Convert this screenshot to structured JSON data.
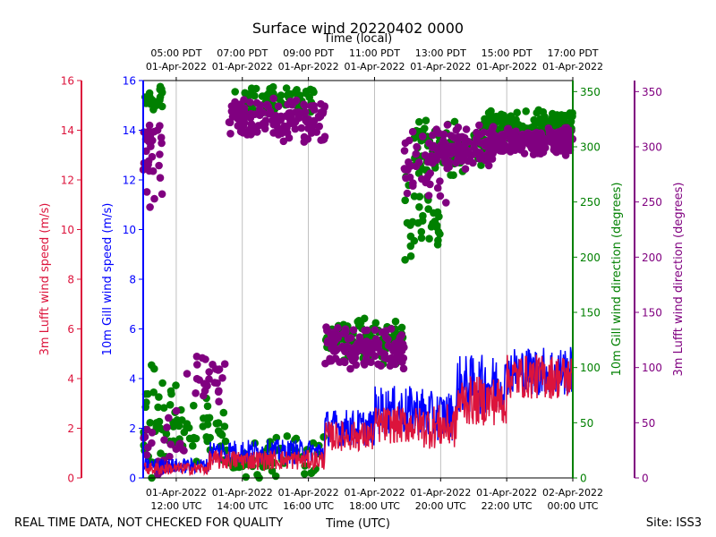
{
  "chart_data": {
    "type": "scatter",
    "title": "Surface wind 20220402 0000",
    "top_axis_label": "Time (local)",
    "xlabel": "Time (UTC)",
    "footer_left": "REAL TIME DATA, NOT CHECKED FOR QUALITY",
    "footer_right": "Site: ISS3",
    "x_range_hours_utc": [
      11,
      24
    ],
    "bottom_ticks": [
      {
        "hour": 12,
        "line1": "01-Apr-2022",
        "line2": "12:00 UTC"
      },
      {
        "hour": 14,
        "line1": "01-Apr-2022",
        "line2": "14:00 UTC"
      },
      {
        "hour": 16,
        "line1": "01-Apr-2022",
        "line2": "16:00 UTC"
      },
      {
        "hour": 18,
        "line1": "01-Apr-2022",
        "line2": "18:00 UTC"
      },
      {
        "hour": 20,
        "line1": "01-Apr-2022",
        "line2": "20:00 UTC"
      },
      {
        "hour": 22,
        "line1": "01-Apr-2022",
        "line2": "22:00 UTC"
      },
      {
        "hour": 24,
        "line1": "02-Apr-2022",
        "line2": "00:00 UTC"
      }
    ],
    "top_ticks": [
      {
        "hour": 12,
        "line1": "05:00 PDT",
        "line2": "01-Apr-2022"
      },
      {
        "hour": 14,
        "line1": "07:00 PDT",
        "line2": "01-Apr-2022"
      },
      {
        "hour": 16,
        "line1": "09:00 PDT",
        "line2": "01-Apr-2022"
      },
      {
        "hour": 18,
        "line1": "11:00 PDT",
        "line2": "01-Apr-2022"
      },
      {
        "hour": 20,
        "line1": "13:00 PDT",
        "line2": "01-Apr-2022"
      },
      {
        "hour": 22,
        "line1": "15:00 PDT",
        "line2": "01-Apr-2022"
      },
      {
        "hour": 24,
        "line1": "17:00 PDT",
        "line2": "01-Apr-2022"
      }
    ],
    "axes": {
      "lufft_speed": {
        "label": "3m Lufft wind speed (m/s)",
        "range": [
          0,
          16
        ],
        "ticks": [
          0,
          2,
          4,
          6,
          8,
          10,
          12,
          14,
          16
        ],
        "color": "#dc143c"
      },
      "gill_speed": {
        "label": "10m Gill wind speed (m/s)",
        "range": [
          0,
          16
        ],
        "ticks": [
          0,
          2,
          4,
          6,
          8,
          10,
          12,
          14,
          16
        ],
        "color": "#0000ff"
      },
      "gill_dir": {
        "label": "10m Gill wind direction (degrees)",
        "range": [
          0,
          360
        ],
        "ticks": [
          0,
          50,
          100,
          150,
          200,
          250,
          300,
          350
        ],
        "color": "#008000"
      },
      "lufft_dir": {
        "label": "3m Lufft wind direction (degrees)",
        "range": [
          0,
          360
        ],
        "ticks": [
          0,
          50,
          100,
          150,
          200,
          250,
          300,
          350
        ],
        "color": "#800080"
      }
    },
    "series": [
      {
        "name": "10m Gill wind speed",
        "kind": "line",
        "axis": "gill_speed",
        "color": "#0000ff",
        "segments": [
          {
            "t": [
              11.0,
              13.0
            ],
            "base": 0.4,
            "amp": 0.6
          },
          {
            "t": [
              13.0,
              15.0
            ],
            "base": 0.9,
            "amp": 1.0
          },
          {
            "t": [
              15.0,
              16.5
            ],
            "base": 0.9,
            "amp": 1.0
          },
          {
            "t": [
              16.5,
              18.0
            ],
            "base": 1.8,
            "amp": 1.5
          },
          {
            "t": [
              18.0,
              19.5
            ],
            "base": 2.4,
            "amp": 2.0
          },
          {
            "t": [
              19.5,
              20.5
            ],
            "base": 2.2,
            "amp": 2.0
          },
          {
            "t": [
              20.5,
              22.0
            ],
            "base": 3.4,
            "amp": 2.4
          },
          {
            "t": [
              22.0,
              24.0
            ],
            "base": 4.0,
            "amp": 2.0
          }
        ]
      },
      {
        "name": "3m Lufft wind speed",
        "kind": "line",
        "axis": "lufft_speed",
        "color": "#dc143c",
        "segments": [
          {
            "t": [
              11.0,
              13.0
            ],
            "base": 0.3,
            "amp": 0.5
          },
          {
            "t": [
              13.0,
              16.5
            ],
            "base": 0.6,
            "amp": 0.8
          },
          {
            "t": [
              16.5,
              18.0
            ],
            "base": 1.5,
            "amp": 1.2
          },
          {
            "t": [
              18.0,
              19.5
            ],
            "base": 1.9,
            "amp": 1.5
          },
          {
            "t": [
              19.5,
              20.5
            ],
            "base": 1.8,
            "amp": 1.8
          },
          {
            "t": [
              20.5,
              22.0
            ],
            "base": 2.8,
            "amp": 2.0
          },
          {
            "t": [
              22.0,
              24.0
            ],
            "base": 3.8,
            "amp": 1.8
          }
        ]
      },
      {
        "name": "10m Gill wind direction",
        "kind": "scatter",
        "axis": "gill_dir",
        "color": "#008000",
        "clusters": [
          {
            "t": [
              11.0,
              11.6
            ],
            "center": 345,
            "spread": 15,
            "count": 25
          },
          {
            "t": [
              11.0,
              12.0
            ],
            "center": 50,
            "spread": 60,
            "count": 45
          },
          {
            "t": [
              12.0,
              13.5
            ],
            "center": 40,
            "spread": 40,
            "count": 40
          },
          {
            "t": [
              13.5,
              15.0
            ],
            "center": 15,
            "spread": 20,
            "count": 40
          },
          {
            "t": [
              13.7,
              16.2
            ],
            "center": 345,
            "spread": 18,
            "count": 65
          },
          {
            "t": [
              15.0,
              16.5
            ],
            "center": 20,
            "spread": 25,
            "count": 25
          },
          {
            "t": [
              16.5,
              18.9
            ],
            "center": 125,
            "spread": 22,
            "count": 110
          },
          {
            "t": [
              18.9,
              20.0
            ],
            "center": 240,
            "spread": 60,
            "count": 40
          },
          {
            "t": [
              19.2,
              21.4
            ],
            "center": 300,
            "spread": 30,
            "count": 90
          },
          {
            "t": [
              21.4,
              24.0
            ],
            "center": 320,
            "spread": 15,
            "count": 150
          }
        ]
      },
      {
        "name": "3m Lufft wind direction",
        "kind": "scatter",
        "axis": "lufft_dir",
        "color": "#800080",
        "clusters": [
          {
            "t": [
              11.0,
              11.6
            ],
            "center": 290,
            "spread": 50,
            "count": 30
          },
          {
            "t": [
              11.0,
              12.3
            ],
            "center": 30,
            "spread": 35,
            "count": 25
          },
          {
            "t": [
              12.3,
              13.5
            ],
            "center": 90,
            "spread": 25,
            "count": 25
          },
          {
            "t": [
              13.6,
              16.5
            ],
            "center": 325,
            "spread": 22,
            "count": 140
          },
          {
            "t": [
              16.5,
              18.9
            ],
            "center": 115,
            "spread": 25,
            "count": 130
          },
          {
            "t": [
              18.9,
              20.2
            ],
            "center": 280,
            "spread": 40,
            "count": 50
          },
          {
            "t": [
              20.0,
              21.6
            ],
            "center": 300,
            "spread": 25,
            "count": 90
          },
          {
            "t": [
              21.4,
              24.0
            ],
            "center": 305,
            "spread": 15,
            "count": 180
          }
        ]
      }
    ]
  }
}
